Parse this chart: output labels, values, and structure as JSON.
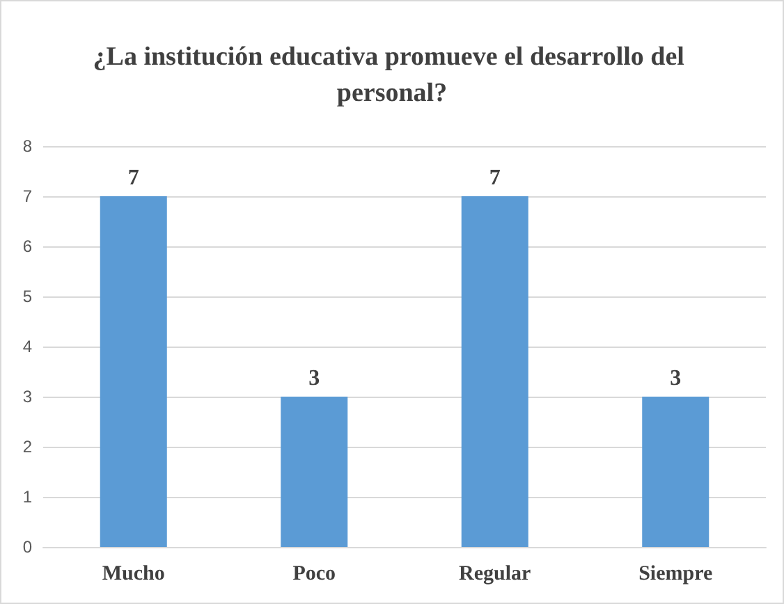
{
  "chart_data": {
    "type": "bar",
    "title": "¿La institución educativa promueve el desarrollo del personal?",
    "categories": [
      "Mucho",
      "Poco",
      "Regular",
      "Siempre"
    ],
    "values": [
      7,
      3,
      7,
      3
    ],
    "color": "#5b9bd5",
    "ylim": [
      0,
      8
    ],
    "yticks": [
      0,
      1,
      2,
      3,
      4,
      5,
      6,
      7,
      8
    ],
    "grid": "y",
    "data_labels": true
  }
}
